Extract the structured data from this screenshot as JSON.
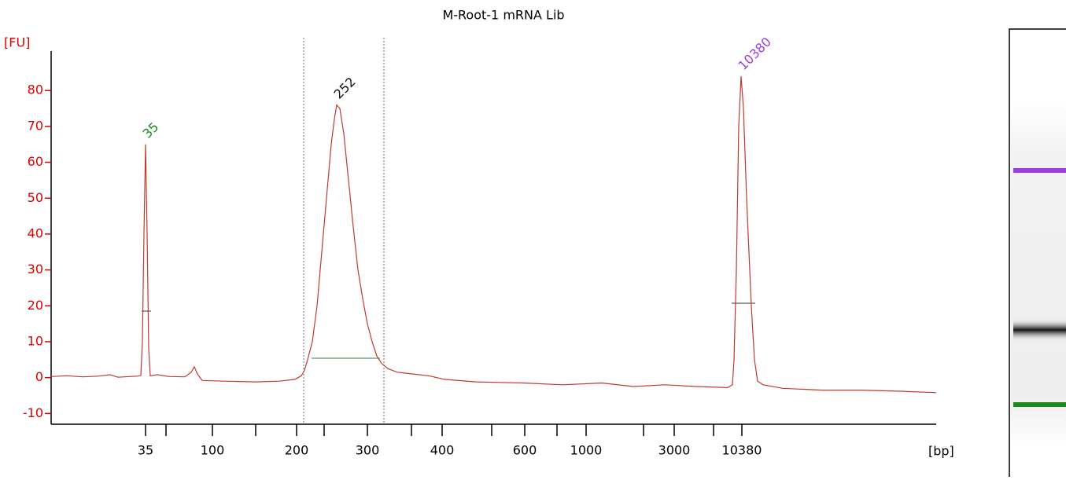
{
  "chart_data": {
    "type": "line",
    "title": "M-Root-1 mRNA Lib",
    "y_label": "[FU]",
    "x_label": "[bp]",
    "xlim": [
      0,
      1125
    ],
    "ylim": [
      -13,
      91
    ],
    "yticks": [
      -10,
      0,
      10,
      20,
      30,
      40,
      50,
      60,
      70,
      80
    ],
    "xticks": [
      {
        "value": 120,
        "label": "35"
      },
      {
        "value": 146,
        "label": null
      },
      {
        "value": 205,
        "label": "100"
      },
      {
        "value": 260,
        "label": null
      },
      {
        "value": 312,
        "label": "200"
      },
      {
        "value": 347,
        "label": null
      },
      {
        "value": 402,
        "label": "300"
      },
      {
        "value": 458,
        "label": null
      },
      {
        "value": 497,
        "label": "400"
      },
      {
        "value": 560,
        "label": null
      },
      {
        "value": 602,
        "label": "600"
      },
      {
        "value": 643,
        "label": null
      },
      {
        "value": 680,
        "label": "1000"
      },
      {
        "value": 753,
        "label": null
      },
      {
        "value": 792,
        "label": "3000"
      },
      {
        "value": 842,
        "label": null
      },
      {
        "value": 878,
        "label": "10380"
      }
    ],
    "region_x": [
      321,
      423
    ],
    "series": [
      {
        "color": "#c0392b",
        "x": [
          0,
          20,
          40,
          60,
          75,
          85,
          100,
          110,
          114,
          116,
          118,
          120,
          122,
          124,
          126,
          135,
          150,
          170,
          178,
          182,
          186,
          192,
          220,
          260,
          290,
          310,
          318,
          322,
          326,
          332,
          338,
          344,
          350,
          356,
          360,
          363,
          367,
          372,
          378,
          384,
          390,
          396,
          402,
          408,
          414,
          420,
          428,
          440,
          460,
          480,
          500,
          540,
          600,
          650,
          700,
          740,
          780,
          820,
          860,
          866,
          868,
          871,
          874,
          877,
          880,
          884,
          890,
          894,
          898,
          905,
          930,
          980,
          1030,
          1080,
          1125
        ],
        "values": [
          0.3,
          0.5,
          0.2,
          0.4,
          0.8,
          0.1,
          0.3,
          0.4,
          0.6,
          10,
          40,
          65,
          40,
          8,
          0.5,
          0.8,
          0.3,
          0.2,
          1.5,
          3,
          1,
          -0.8,
          -1,
          -1.2,
          -1,
          -0.5,
          0.5,
          2,
          5,
          10,
          20,
          35,
          50,
          65,
          72,
          76,
          75,
          68,
          55,
          42,
          30,
          22,
          15,
          10,
          6,
          4,
          2.5,
          1.5,
          1,
          0.5,
          -0.5,
          -1.2,
          -1.5,
          -2,
          -1.5,
          -2.5,
          -2,
          -2.5,
          -2.8,
          -2,
          5,
          30,
          70,
          84,
          75,
          50,
          20,
          5,
          -1,
          -2,
          -3,
          -3.5,
          -3.5,
          -3.8,
          -4.2
        ]
      }
    ],
    "peaks": [
      {
        "size": "35",
        "x": 120,
        "y": 65,
        "color": "#1a8a1a"
      },
      {
        "size": "252",
        "x": 363,
        "y": 76,
        "color": "#111111"
      },
      {
        "size": "10380",
        "x": 877,
        "y": 84,
        "color": "#9b3fe0"
      }
    ]
  }
}
